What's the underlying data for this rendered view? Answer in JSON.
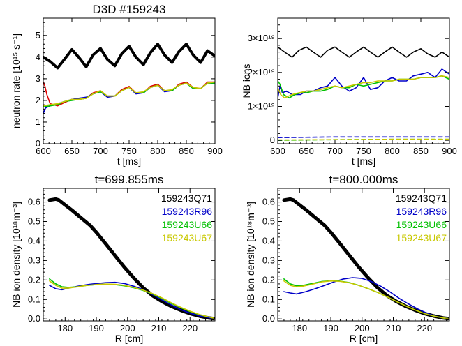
{
  "chart_data": [
    {
      "type": "line",
      "title": "D3D #159243",
      "xlabel": "t [ms]",
      "ylabel": "neutron rate [10¹⁵ s⁻¹]",
      "xlim": [
        600,
        900
      ],
      "ylim": [
        0,
        5.8
      ],
      "xticks": [
        "600",
        "650",
        "700",
        "750",
        "800",
        "850",
        "900"
      ],
      "yticks": [
        "0",
        "1",
        "2",
        "3",
        "4",
        "5"
      ],
      "series": [
        {
          "color": "#000000",
          "x": [
            600,
            612,
            625,
            637,
            650,
            662,
            675,
            687,
            700,
            712,
            725,
            737,
            750,
            762,
            775,
            787,
            800,
            812,
            825,
            837,
            850,
            862,
            875,
            887,
            900
          ],
          "y": [
            4.0,
            3.8,
            3.5,
            3.9,
            4.35,
            4.0,
            3.55,
            4.1,
            4.4,
            3.9,
            3.6,
            4.15,
            4.5,
            4.0,
            3.65,
            4.2,
            4.6,
            4.1,
            3.75,
            4.25,
            4.6,
            4.1,
            3.75,
            4.3,
            4.05
          ]
        },
        {
          "color": "#e00000",
          "x": [
            600,
            603,
            606,
            612,
            625,
            637,
            650,
            662,
            675,
            687,
            700,
            712,
            725,
            737,
            750,
            762,
            775,
            787,
            800,
            812,
            825,
            837,
            850,
            862,
            875,
            887,
            900
          ],
          "y": [
            2.85,
            2.65,
            2.3,
            1.85,
            1.75,
            1.9,
            2.05,
            2.05,
            2.1,
            2.35,
            2.45,
            2.2,
            2.2,
            2.5,
            2.65,
            2.35,
            2.35,
            2.65,
            2.75,
            2.45,
            2.45,
            2.75,
            2.85,
            2.6,
            2.55,
            2.85,
            2.85
          ]
        },
        {
          "color": "#0000c8",
          "x": [
            600,
            604,
            612,
            625,
            637,
            650,
            662,
            675,
            687,
            700,
            712,
            725,
            737,
            750,
            762,
            775,
            787,
            800,
            812,
            825,
            837,
            850,
            862,
            875,
            887,
            900
          ],
          "y": [
            1.4,
            1.65,
            1.75,
            1.85,
            1.95,
            2.05,
            2.1,
            2.15,
            2.3,
            2.4,
            2.15,
            2.2,
            2.45,
            2.6,
            2.3,
            2.35,
            2.6,
            2.7,
            2.4,
            2.45,
            2.7,
            2.8,
            2.55,
            2.55,
            2.8,
            2.8
          ]
        },
        {
          "color": "#00c000",
          "x": [
            600,
            612,
            625,
            637,
            650,
            662,
            675,
            687,
            700,
            712,
            725,
            737,
            750,
            762,
            775,
            787,
            800,
            812,
            825,
            837,
            850,
            862,
            875,
            887,
            900
          ],
          "y": [
            1.7,
            1.75,
            1.8,
            1.95,
            2.0,
            2.05,
            2.1,
            2.3,
            2.4,
            2.2,
            2.2,
            2.45,
            2.6,
            2.35,
            2.35,
            2.6,
            2.7,
            2.45,
            2.45,
            2.7,
            2.8,
            2.55,
            2.55,
            2.8,
            2.8
          ]
        },
        {
          "color": "#c8c800",
          "x": [
            600,
            612,
            625,
            637,
            650,
            662,
            675,
            687,
            700,
            712,
            725,
            737,
            750,
            762,
            775,
            787,
            800,
            812,
            825,
            837,
            850,
            862,
            875,
            887,
            900
          ],
          "y": [
            1.75,
            1.8,
            1.85,
            1.95,
            2.05,
            2.05,
            2.1,
            2.3,
            2.45,
            2.2,
            2.2,
            2.45,
            2.6,
            2.35,
            2.4,
            2.6,
            2.7,
            2.45,
            2.5,
            2.7,
            2.8,
            2.6,
            2.55,
            2.8,
            2.85
          ]
        }
      ]
    },
    {
      "type": "line",
      "xlabel": "t [ms]",
      "ylabel": "NB ions",
      "xlim": [
        600,
        900
      ],
      "ylim": [
        -0.1,
        3.6
      ],
      "xticks": [
        "600",
        "650",
        "700",
        "750",
        "800",
        "850",
        "900"
      ],
      "yticks": [
        "0",
        "1×10¹⁹",
        "2×10¹⁹",
        "3×10¹⁹"
      ],
      "series": [
        {
          "color": "#000000",
          "x": [
            600,
            612,
            625,
            637,
            650,
            662,
            675,
            687,
            700,
            712,
            725,
            737,
            750,
            762,
            775,
            787,
            800,
            812,
            825,
            837,
            850,
            862,
            875,
            887,
            900
          ],
          "y": [
            2.75,
            2.6,
            2.45,
            2.65,
            2.75,
            2.6,
            2.45,
            2.65,
            2.75,
            2.6,
            2.45,
            2.6,
            2.75,
            2.6,
            2.45,
            2.6,
            2.75,
            2.6,
            2.45,
            2.6,
            2.7,
            2.55,
            2.45,
            2.6,
            2.45
          ]
        },
        {
          "color": "#0000c8",
          "x": [
            600,
            604,
            608,
            615,
            625,
            640,
            650,
            662,
            675,
            687,
            700,
            712,
            725,
            737,
            750,
            762,
            775,
            787,
            800,
            812,
            825,
            837,
            850,
            862,
            875,
            887,
            900
          ],
          "y": [
            1.25,
            1.6,
            1.4,
            1.45,
            1.35,
            1.35,
            1.45,
            1.45,
            1.55,
            1.6,
            1.85,
            1.6,
            1.45,
            1.55,
            1.85,
            1.5,
            1.55,
            1.75,
            1.85,
            1.75,
            1.75,
            1.9,
            1.95,
            2.0,
            1.85,
            2.1,
            1.95
          ]
        },
        {
          "color": "#00c000",
          "x": [
            600,
            604,
            610,
            620,
            630,
            640,
            650,
            662,
            675,
            687,
            700,
            712,
            725,
            737,
            750,
            762,
            775,
            787,
            800,
            812,
            825,
            837,
            850,
            862,
            875,
            887,
            900
          ],
          "y": [
            1.75,
            1.65,
            1.35,
            1.25,
            1.35,
            1.4,
            1.4,
            1.45,
            1.45,
            1.5,
            1.6,
            1.55,
            1.55,
            1.65,
            1.6,
            1.65,
            1.7,
            1.75,
            1.75,
            1.8,
            1.8,
            1.8,
            1.85,
            1.85,
            1.85,
            1.9,
            1.8
          ]
        },
        {
          "color": "#c8c800",
          "x": [
            600,
            605,
            612,
            625,
            637,
            650,
            662,
            675,
            687,
            700,
            712,
            725,
            737,
            750,
            762,
            775,
            787,
            800,
            812,
            825,
            837,
            850,
            862,
            875,
            887,
            900
          ],
          "y": [
            1.55,
            1.35,
            1.25,
            1.35,
            1.4,
            1.45,
            1.45,
            1.5,
            1.55,
            1.6,
            1.55,
            1.6,
            1.65,
            1.7,
            1.7,
            1.75,
            1.75,
            1.75,
            1.8,
            1.8,
            1.8,
            1.85,
            1.85,
            1.85,
            1.9,
            1.85
          ]
        },
        {
          "color": "#0000c8",
          "dashed": true,
          "x": [
            600,
            700,
            800,
            900
          ],
          "y": [
            0.08,
            0.1,
            0.1,
            0.1
          ]
        },
        {
          "color": "#00c000",
          "dashed": true,
          "x": [
            600,
            700,
            800,
            900
          ],
          "y": [
            0.0,
            0.02,
            0.03,
            0.03
          ]
        },
        {
          "color": "#c8c800",
          "dashed": true,
          "x": [
            600,
            700,
            800,
            900
          ],
          "y": [
            0.01,
            0.02,
            0.03,
            0.03
          ]
        }
      ]
    },
    {
      "type": "line",
      "title": "t=699.855ms",
      "xlabel": "R [cm]",
      "ylabel": "NB ion density [10¹⁸m⁻³]",
      "xlim": [
        173,
        228
      ],
      "ylim": [
        -0.01,
        0.67
      ],
      "xticks": [
        "180",
        "190",
        "200",
        "210",
        "220"
      ],
      "yticks": [
        "0.0",
        "0.1",
        "0.2",
        "0.3",
        "0.4",
        "0.5",
        "0.6"
      ],
      "legend": {
        "placement": "top-right",
        "entries": [
          {
            "label": "159243Q71",
            "color": "#000000"
          },
          {
            "label": "159243R96",
            "color": "#0000c8"
          },
          {
            "label": "159243U66",
            "color": "#00c000"
          },
          {
            "label": "159243U67",
            "color": "#c8c800"
          }
        ]
      },
      "series": [
        {
          "color": "#000000",
          "thick": true,
          "x": [
            175,
            177,
            178,
            180,
            182,
            185,
            188,
            190,
            193,
            196,
            199,
            202,
            205,
            208,
            211,
            214,
            217,
            220,
            223,
            226,
            227.5
          ],
          "y": [
            0.61,
            0.615,
            0.61,
            0.585,
            0.56,
            0.52,
            0.48,
            0.445,
            0.385,
            0.325,
            0.265,
            0.21,
            0.16,
            0.12,
            0.09,
            0.065,
            0.045,
            0.028,
            0.015,
            0.005,
            0.002
          ]
        },
        {
          "color": "#0000c8",
          "x": [
            175,
            177,
            179,
            181,
            184,
            187,
            190,
            193,
            196,
            199,
            202,
            205,
            208,
            211,
            214,
            217,
            220,
            223,
            226,
            227.5
          ],
          "y": [
            0.172,
            0.155,
            0.15,
            0.158,
            0.168,
            0.176,
            0.182,
            0.186,
            0.188,
            0.182,
            0.168,
            0.15,
            0.125,
            0.098,
            0.072,
            0.048,
            0.03,
            0.016,
            0.006,
            0.003
          ]
        },
        {
          "color": "#00c000",
          "x": [
            175,
            177,
            179,
            181,
            184,
            187,
            190,
            193,
            196,
            199,
            202,
            205,
            208,
            211,
            214,
            217,
            220,
            223,
            226,
            227.5
          ],
          "y": [
            0.205,
            0.18,
            0.165,
            0.162,
            0.165,
            0.172,
            0.176,
            0.178,
            0.176,
            0.17,
            0.16,
            0.146,
            0.128,
            0.105,
            0.08,
            0.058,
            0.038,
            0.022,
            0.01,
            0.004
          ]
        },
        {
          "color": "#c8c800",
          "x": [
            175,
            177,
            179,
            181,
            184,
            187,
            190,
            193,
            196,
            199,
            202,
            205,
            208,
            211,
            214,
            217,
            220,
            223,
            226,
            227.5
          ],
          "y": [
            0.195,
            0.172,
            0.158,
            0.158,
            0.165,
            0.172,
            0.177,
            0.179,
            0.178,
            0.172,
            0.162,
            0.148,
            0.13,
            0.108,
            0.083,
            0.06,
            0.04,
            0.023,
            0.01,
            0.004
          ]
        }
      ]
    },
    {
      "type": "line",
      "title": "t=800.000ms",
      "xlabel": "R [cm]",
      "ylabel": "NB ion density [10¹⁸m⁻³]",
      "xlim": [
        173,
        228
      ],
      "ylim": [
        -0.01,
        0.67
      ],
      "xticks": [
        "180",
        "190",
        "200",
        "210",
        "220"
      ],
      "yticks": [
        "0.0",
        "0.1",
        "0.2",
        "0.3",
        "0.4",
        "0.5",
        "0.6"
      ],
      "legend": {
        "placement": "top-right",
        "entries": [
          {
            "label": "159243Q71",
            "color": "#000000"
          },
          {
            "label": "159243R96",
            "color": "#0000c8"
          },
          {
            "label": "159243U66",
            "color": "#00c000"
          },
          {
            "label": "159243U67",
            "color": "#c8c800"
          }
        ]
      },
      "series": [
        {
          "color": "#000000",
          "thick": true,
          "x": [
            175,
            177,
            178,
            180,
            182,
            185,
            188,
            190,
            193,
            196,
            199,
            202,
            205,
            208,
            211,
            214,
            217,
            220,
            223,
            226,
            227.5
          ],
          "y": [
            0.61,
            0.615,
            0.61,
            0.585,
            0.56,
            0.52,
            0.48,
            0.445,
            0.385,
            0.325,
            0.265,
            0.21,
            0.16,
            0.12,
            0.09,
            0.065,
            0.045,
            0.028,
            0.015,
            0.005,
            0.002
          ]
        },
        {
          "color": "#0000c8",
          "x": [
            175,
            177,
            179,
            182,
            185,
            188,
            191,
            194,
            197,
            200,
            203,
            206,
            209,
            212,
            215,
            218,
            221,
            224,
            227.5
          ],
          "y": [
            0.14,
            0.133,
            0.128,
            0.14,
            0.155,
            0.172,
            0.19,
            0.205,
            0.212,
            0.208,
            0.192,
            0.168,
            0.138,
            0.105,
            0.076,
            0.05,
            0.028,
            0.012,
            0.003
          ]
        },
        {
          "color": "#00c000",
          "x": [
            175,
            177,
            179,
            181,
            184,
            187,
            190,
            193,
            196,
            199,
            202,
            205,
            208,
            211,
            214,
            217,
            220,
            223,
            226,
            227.5
          ],
          "y": [
            0.205,
            0.18,
            0.17,
            0.172,
            0.182,
            0.192,
            0.196,
            0.194,
            0.186,
            0.172,
            0.155,
            0.136,
            0.114,
            0.09,
            0.067,
            0.046,
            0.028,
            0.015,
            0.005,
            0.002
          ]
        },
        {
          "color": "#c8c800",
          "x": [
            175,
            177,
            179,
            181,
            184,
            187,
            190,
            193,
            196,
            199,
            202,
            205,
            208,
            211,
            214,
            217,
            220,
            223,
            226,
            227.5
          ],
          "y": [
            0.195,
            0.172,
            0.165,
            0.168,
            0.178,
            0.19,
            0.195,
            0.193,
            0.185,
            0.172,
            0.155,
            0.136,
            0.114,
            0.09,
            0.067,
            0.046,
            0.028,
            0.015,
            0.005,
            0.002
          ]
        }
      ]
    }
  ]
}
